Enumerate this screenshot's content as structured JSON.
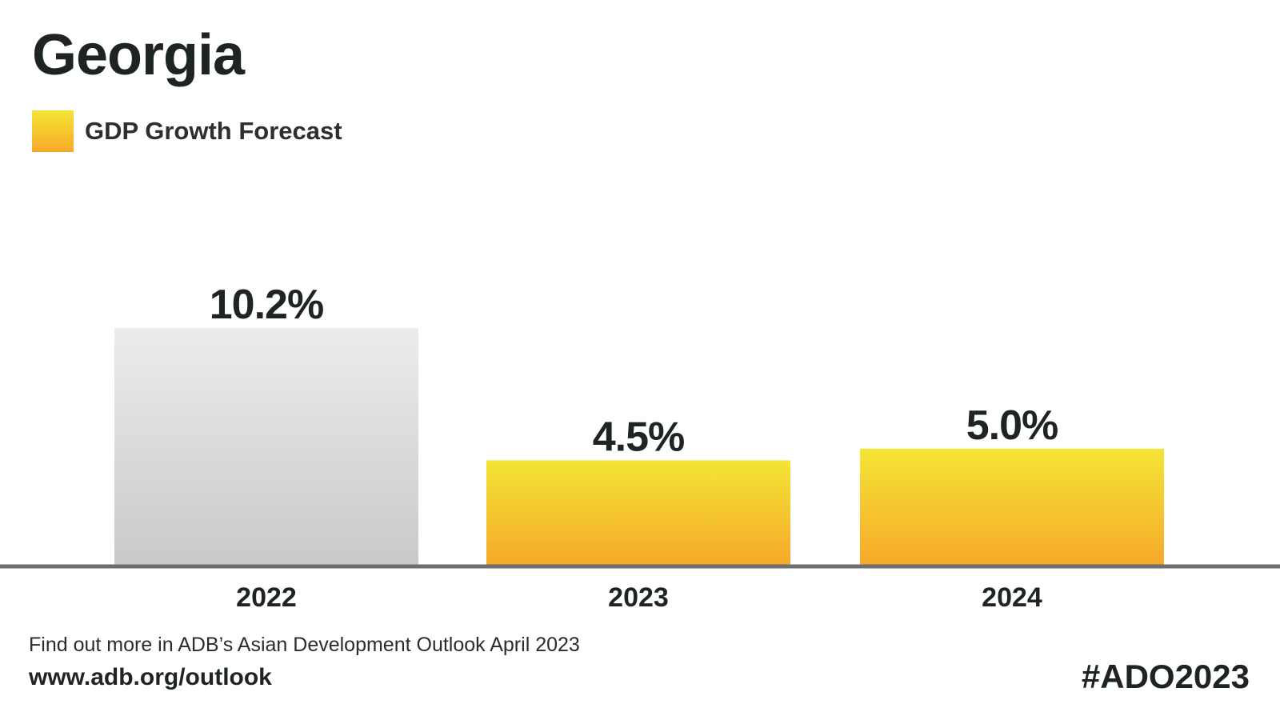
{
  "title": "Georgia",
  "legend": {
    "label": "GDP Growth Forecast"
  },
  "footer": {
    "note": "Find out more in ADB’s Asian Development Outlook April 2023",
    "url": "www.adb.org/outlook",
    "hashtag": "#ADO2023"
  },
  "colors": {
    "forecast_top": "#f3e535",
    "forecast_bottom": "#f7a92a",
    "actual_top": "#ececec",
    "actual_bottom": "#cbc9c8",
    "axis": "#6d6e70",
    "text": "#1e2421"
  },
  "chart_data": {
    "type": "bar",
    "categories": [
      "2022",
      "2023",
      "2024"
    ],
    "values": [
      10.2,
      4.5,
      5.0
    ],
    "value_labels": [
      "10.2%",
      "4.5%",
      "5.0%"
    ],
    "unit": "%",
    "ylim": [
      0,
      10.2
    ],
    "series_style": [
      "actual",
      "forecast",
      "forecast"
    ],
    "grid": false,
    "legend_position": "top-left"
  }
}
